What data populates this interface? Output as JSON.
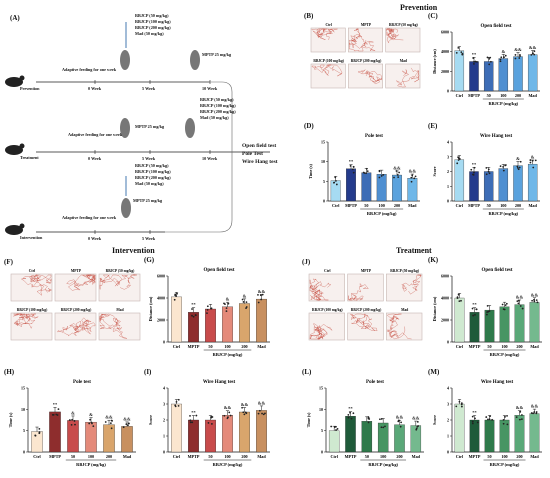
{
  "section_titles": {
    "prevention": "Prevention",
    "intervention": "Intervention",
    "treatment": "Treatment"
  },
  "panel_letters": [
    "(A)",
    "(B)",
    "(C)",
    "(D)",
    "(E)",
    "(F)",
    "(G)",
    "(H)",
    "(I)",
    "(J)",
    "(K)",
    "(L)",
    "(M)"
  ],
  "schematic": {
    "row1": {
      "name": "Prevention",
      "feed": "Adaptive feeding for one week",
      "doses": [
        "RBJCP (50 mg/kg)",
        "RBJCP (100 mg/kg)",
        "RBJCP (200 mg/kg)",
        "Mad (50 mg/kg)"
      ],
      "mptp": "MPTP 25 mg/kg",
      "weeks": [
        "0 Week",
        "5 Week",
        "10 Week"
      ]
    },
    "row2": {
      "name": "Treatment",
      "feed": "Adaptive feeding for one week",
      "doses": [
        "RBJCP (50 mg/kg)",
        "RBJCP (100 mg/kg)",
        "RBJCP (200 mg/kg)",
        "Mad (50 mg/kg)"
      ],
      "mptp": "MPTP 25 mg/kg",
      "weeks": [
        "0 Week",
        "5 Week",
        "10 Week"
      ]
    },
    "row3": {
      "name": "Intervention",
      "feed": "Adaptive feeding for one week",
      "doses": [
        "RBJCP (50 mg/kg)",
        "RBJCP (100 mg/kg)",
        "RBJCP (200 mg/kg)",
        "Mad (50 mg/kg)"
      ],
      "mptp": "MPTP 25 mg/kg",
      "weeks": [
        "0 Week",
        "5 Week"
      ]
    },
    "tests": [
      "Open field test",
      "Pole Test",
      "Wire Hang test"
    ]
  },
  "maze_labels": {
    "top": [
      "Ctrl",
      "MPTP",
      "RBJCP (50 mg/kg)"
    ],
    "bottom": [
      "RBJCP (100 mg/kg)",
      "RBJCP (200 mg/kg)",
      "Mad"
    ]
  },
  "chart_data": [
    {
      "id": "C",
      "type": "bar",
      "title": "Open field test",
      "ylabel": "Distance (cm)",
      "xlabel": "RBJCP (mg/kg)",
      "categories": [
        "Ctrl",
        "MPTP",
        "50",
        "100",
        "200",
        "Mad"
      ],
      "values": [
        4100,
        3000,
        3000,
        3300,
        3500,
        3700
      ],
      "ylim": [
        0,
        6000
      ],
      "yticks": [
        "0",
        "2000",
        "4000",
        "6000"
      ],
      "annot": [
        "",
        "**",
        "",
        "&",
        "&&",
        "&&"
      ],
      "colors": [
        "#a6dbf2",
        "#243b8c",
        "#3d6db6",
        "#4f8fd1",
        "#5aa2dd",
        "#6fb7e8"
      ]
    },
    {
      "id": "D",
      "type": "bar",
      "title": "Pole test",
      "ylabel": "Time (s)",
      "xlabel": "RBJCP (mg/kg)",
      "categories": [
        "Ctrl",
        "MPTP",
        "50",
        "100",
        "200",
        "Mad"
      ],
      "values": [
        5.2,
        8.2,
        7.2,
        6.8,
        6.6,
        5.8
      ],
      "ylim": [
        0,
        15
      ],
      "yticks": [
        "0",
        "5",
        "10",
        "15"
      ],
      "annot": [
        "",
        "**",
        "",
        "",
        "&&",
        "&&"
      ],
      "colors": [
        "#a6dbf2",
        "#243b8c",
        "#3d6db6",
        "#4f8fd1",
        "#5aa2dd",
        "#6fb7e8"
      ]
    },
    {
      "id": "E",
      "type": "bar",
      "title": "Wire Hang test",
      "ylabel": "Score",
      "xlabel": "RBJCP (mg/kg)",
      "categories": [
        "Ctrl",
        "MPTP",
        "50",
        "100",
        "200",
        "Mad"
      ],
      "values": [
        2.8,
        2.0,
        2.0,
        2.2,
        2.4,
        2.5
      ],
      "ylim": [
        0,
        4
      ],
      "yticks": [
        "0",
        "1",
        "2",
        "3",
        "4"
      ],
      "annot": [
        "",
        "**",
        "",
        "",
        "&",
        "&"
      ],
      "colors": [
        "#a6dbf2",
        "#243b8c",
        "#3d6db6",
        "#4f8fd1",
        "#5aa2dd",
        "#6fb7e8"
      ]
    },
    {
      "id": "G",
      "type": "bar",
      "title": "Open field test",
      "ylabel": "Distance (cm)",
      "xlabel": "RBJCP (mg/kg)",
      "categories": [
        "Ctrl",
        "MPTP",
        "50",
        "100",
        "200",
        "Mad"
      ],
      "values": [
        4100,
        2700,
        3000,
        3200,
        3500,
        3900
      ],
      "ylim": [
        0,
        6000
      ],
      "yticks": [
        "0",
        "2000",
        "4000",
        "6000"
      ],
      "annot": [
        "",
        "**",
        "",
        "&",
        "&",
        "&&"
      ],
      "colors": [
        "#fbe6cf",
        "#8e2d2d",
        "#c84b4b",
        "#e48a7a",
        "#d9a56c",
        "#c89060"
      ]
    },
    {
      "id": "H",
      "type": "bar",
      "title": "Pole test",
      "ylabel": "Time (s)",
      "xlabel": "RBJCP (mg/kg)",
      "categories": [
        "Ctrl",
        "MPTP",
        "50",
        "100",
        "200",
        "Mad"
      ],
      "values": [
        4.8,
        9.4,
        7.4,
        7.0,
        6.4,
        6.0
      ],
      "ylim": [
        0,
        15
      ],
      "yticks": [
        "0",
        "5",
        "10",
        "15"
      ],
      "annot": [
        "",
        "**",
        "&",
        "&",
        "&&",
        "&&"
      ],
      "colors": [
        "#fbe6cf",
        "#8e2d2d",
        "#c84b4b",
        "#e48a7a",
        "#d9a56c",
        "#c89060"
      ]
    },
    {
      "id": "I",
      "type": "bar",
      "title": "Wire Hang test",
      "ylabel": "Score",
      "xlabel": "RBJCP (mg/kg)",
      "categories": [
        "Ctrl",
        "MPTP",
        "50",
        "100",
        "200",
        "Mad"
      ],
      "values": [
        3.0,
        2.0,
        2.0,
        2.3,
        2.5,
        2.6
      ],
      "ylim": [
        0,
        4
      ],
      "yticks": [
        "0",
        "1",
        "2",
        "3",
        "4"
      ],
      "annot": [
        "",
        "**",
        "",
        "&&",
        "&&",
        "&&"
      ],
      "colors": [
        "#fbe6cf",
        "#8e2d2d",
        "#c84b4b",
        "#e48a7a",
        "#d9a56c",
        "#c89060"
      ]
    },
    {
      "id": "K",
      "type": "bar",
      "title": "Open field test",
      "ylabel": "Distance (cm)",
      "xlabel": "RBJCP (mg/kg)",
      "categories": [
        "Ctrl",
        "MPTP",
        "50",
        "100",
        "200",
        "Mad"
      ],
      "values": [
        4000,
        2700,
        2900,
        3200,
        3400,
        3600
      ],
      "ylim": [
        0,
        6000
      ],
      "yticks": [
        "0",
        "2000",
        "4000",
        "6000"
      ],
      "annot": [
        "",
        "**",
        "",
        "",
        "&&",
        "&&"
      ],
      "colors": [
        "#cfe9d0",
        "#1f5b3a",
        "#2f7a4b",
        "#479563",
        "#5aa878",
        "#74b98e"
      ]
    },
    {
      "id": "L",
      "type": "bar",
      "title": "Pole test",
      "ylabel": "Time (s)",
      "xlabel": "RBJCP (mg/kg)",
      "categories": [
        "Ctrl",
        "MPTP",
        "50",
        "100",
        "200",
        "Mad"
      ],
      "values": [
        5.0,
        8.4,
        7.2,
        6.8,
        6.4,
        6.2
      ],
      "ylim": [
        0,
        15
      ],
      "yticks": [
        "0",
        "5",
        "10",
        "15"
      ],
      "annot": [
        "",
        "**",
        "",
        "",
        "&&",
        "&&"
      ],
      "colors": [
        "#cfe9d0",
        "#1f5b3a",
        "#2f7a4b",
        "#479563",
        "#5aa878",
        "#74b98e"
      ]
    },
    {
      "id": "M",
      "type": "bar",
      "title": "Wire Hang test",
      "ylabel": "Score",
      "xlabel": "RBJCP (mg/kg)",
      "categories": [
        "Ctrl",
        "MPTP",
        "50",
        "100",
        "200",
        "Mad"
      ],
      "values": [
        3.0,
        2.0,
        2.0,
        2.0,
        2.3,
        2.4
      ],
      "ylim": [
        0,
        4
      ],
      "yticks": [
        "0",
        "1",
        "2",
        "3",
        "4"
      ],
      "annot": [
        "",
        "**",
        "",
        "",
        "&&",
        "&&"
      ],
      "colors": [
        "#cfe9d0",
        "#1f5b3a",
        "#2f7a4b",
        "#479563",
        "#5aa878",
        "#74b98e"
      ]
    }
  ]
}
